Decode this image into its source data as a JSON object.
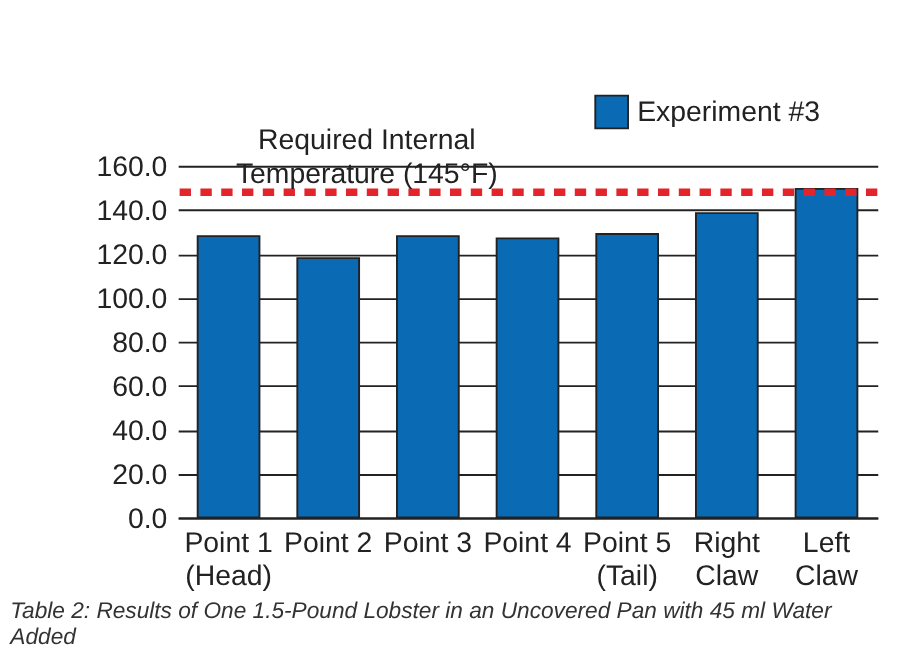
{
  "chart_data": {
    "type": "bar",
    "categories": [
      "Point 1\n(Head)",
      "Point 2",
      "Point 3",
      "Point 4",
      "Point 5\n(Tail)",
      "Right\nClaw",
      "Left\nClaw"
    ],
    "series": [
      {
        "name": "Experiment #3",
        "color": "#0a6ab4",
        "values": [
          128,
          118,
          128,
          127,
          129,
          138.5,
          149.5
        ]
      }
    ],
    "ylim": [
      0,
      160
    ],
    "yticks": [
      {
        "value": 0,
        "label": "0.0"
      },
      {
        "value": 20,
        "label": "20.0"
      },
      {
        "value": 40,
        "label": "40.0"
      },
      {
        "value": 60,
        "label": "60.0"
      },
      {
        "value": 80,
        "label": "80.0"
      },
      {
        "value": 100,
        "label": "100.0"
      },
      {
        "value": 120,
        "label": "120.0"
      },
      {
        "value": 140,
        "label": "140.0"
      },
      {
        "value": 160,
        "label": "160.0"
      }
    ],
    "ref_lines": [
      {
        "axis": "y",
        "value": 148,
        "label": "Required Internal\nTemperature (145°F)",
        "color": "#e3242b",
        "line_style": "dashed"
      }
    ],
    "annotations": [
      "Table 2: Results of One 1.5-Pound Lobster in an Uncovered Pan with 45 ml Water\nAdded"
    ],
    "grid": "y",
    "legend": "top right"
  }
}
